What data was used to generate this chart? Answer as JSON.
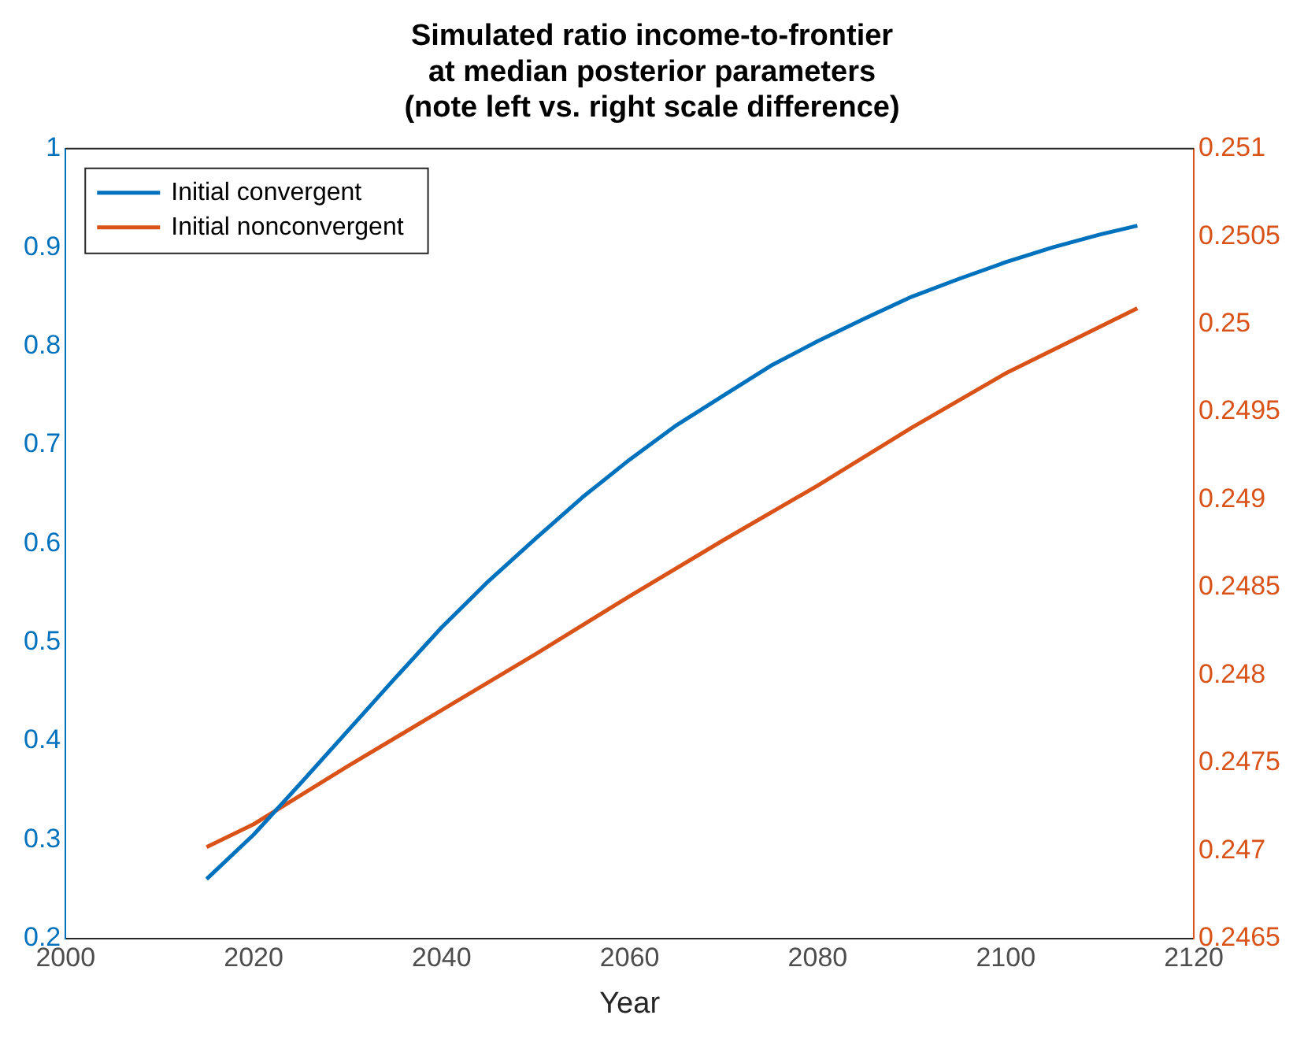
{
  "chart_data": {
    "type": "line",
    "title": "Simulated ratio income-to-frontier\nat median posterior parameters\n(note left vs. right scale difference)",
    "xlabel": "Year",
    "xlim": [
      2000,
      2120
    ],
    "xticks": [
      2000,
      2020,
      2040,
      2060,
      2080,
      2100,
      2120
    ],
    "ylim": [
      0.2,
      1
    ],
    "yticks": [
      0.2,
      0.3,
      0.4,
      0.5,
      0.6,
      0.7,
      0.8,
      0.9,
      1
    ],
    "y2lim": [
      0.2465,
      0.251
    ],
    "y2ticks": [
      0.2465,
      0.247,
      0.2475,
      0.248,
      0.2485,
      0.249,
      0.2495,
      0.25,
      0.2505,
      0.251
    ],
    "legend": "top left",
    "grid": false,
    "series": [
      {
        "name": "Initial convergent",
        "color": "#0072bd",
        "x": [
          2015,
          2020,
          2025,
          2030,
          2035,
          2040,
          2045,
          2050,
          2055,
          2060,
          2065,
          2070,
          2075,
          2080,
          2085,
          2090,
          2095,
          2100,
          2105,
          2110,
          2114
        ],
        "values": [
          0.26,
          0.305,
          0.357,
          0.41,
          0.463,
          0.515,
          0.562,
          0.605,
          0.647,
          0.685,
          0.72,
          0.75,
          0.78,
          0.805,
          0.828,
          0.85,
          0.868,
          0.885,
          0.9,
          0.913,
          0.922
        ]
      },
      {
        "name": "Initial nonconvergent",
        "color": "#d95319",
        "axis": "y2",
        "x": [
          2015,
          2020,
          2030,
          2040,
          2050,
          2060,
          2070,
          2080,
          2090,
          2100,
          2114
        ],
        "values": [
          0.24702,
          0.24715,
          0.24748,
          0.2478,
          0.24812,
          0.24845,
          0.24877,
          0.24908,
          0.24941,
          0.24972,
          0.25009
        ]
      }
    ]
  }
}
